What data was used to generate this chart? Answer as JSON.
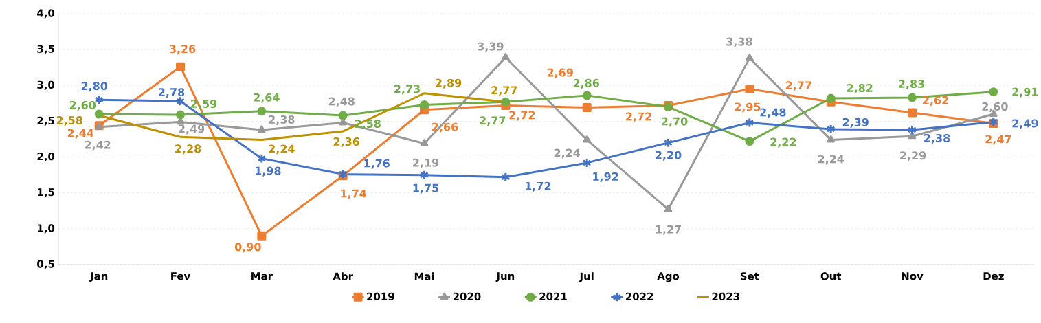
{
  "chart_data": {
    "type": "line",
    "categories": [
      "Jan",
      "Fev",
      "Mar",
      "Abr",
      "Mai",
      "Jun",
      "Jul",
      "Ago",
      "Set",
      "Out",
      "Nov",
      "Dez"
    ],
    "series": [
      {
        "name": "2019",
        "color": "#ed7d31",
        "marker": "square",
        "values": [
          2.44,
          3.26,
          0.9,
          1.74,
          2.66,
          2.72,
          2.69,
          2.72,
          2.95,
          2.77,
          2.62,
          2.47
        ],
        "value_labels": [
          "2,44",
          "3,26",
          "0,90",
          "1,74",
          "2,66",
          "2,72",
          "2,69",
          "2,72",
          "2,95",
          "2,77",
          "2,62",
          "2,47"
        ]
      },
      {
        "name": "2020",
        "color": "#999999",
        "marker": "triangle",
        "values": [
          2.42,
          2.49,
          2.38,
          2.48,
          2.19,
          3.39,
          2.24,
          1.27,
          3.38,
          2.24,
          2.29,
          2.6
        ],
        "value_labels": [
          "2,42",
          "2,49",
          "2,38",
          "2,48",
          "2,19",
          "3,39",
          "2,24",
          "1,27",
          "3,38",
          "2,24",
          "2,29",
          "2,60"
        ]
      },
      {
        "name": "2021",
        "color": "#70ad47",
        "marker": "circle",
        "values": [
          2.6,
          2.59,
          2.64,
          2.58,
          2.73,
          2.77,
          2.86,
          2.7,
          2.22,
          2.82,
          2.83,
          2.91
        ],
        "value_labels": [
          "2,60",
          "2,59",
          "2,64",
          "2,58",
          "2,73",
          "2,77",
          "2,86",
          "2,70",
          "2,22",
          "2,82",
          "2,83",
          "2,91"
        ]
      },
      {
        "name": "2022",
        "color": "#4472c4",
        "marker": "cross",
        "values": [
          2.8,
          2.78,
          1.98,
          1.76,
          1.75,
          1.72,
          1.92,
          2.2,
          2.48,
          2.39,
          2.38,
          2.49
        ],
        "value_labels": [
          "2,80",
          "2,78",
          "1,98",
          "1,76",
          "1,75",
          "1,72",
          "1,92",
          "2,20",
          "2,48",
          "2,39",
          "2,38",
          "2,49"
        ]
      },
      {
        "name": "2023",
        "color": "#bf9000",
        "marker": "none",
        "values": [
          2.58,
          2.28,
          2.24,
          2.36,
          2.89,
          2.77,
          null,
          null,
          null,
          null,
          null,
          null
        ],
        "value_labels": [
          "2,58",
          "2,28",
          "2,24",
          "2,36",
          "2,89",
          "2,77",
          null,
          null,
          null,
          null,
          null,
          null
        ]
      }
    ],
    "ylim": [
      0.5,
      4.0
    ],
    "yticks": [
      {
        "value": 0.5,
        "label": "0,5"
      },
      {
        "value": 1.0,
        "label": "1,0"
      },
      {
        "value": 1.5,
        "label": "1,5"
      },
      {
        "value": 2.0,
        "label": "2,0"
      },
      {
        "value": 2.5,
        "label": "2,5"
      },
      {
        "value": 3.0,
        "label": "3,0"
      },
      {
        "value": 3.5,
        "label": "3,5"
      },
      {
        "value": 4.0,
        "label": "4,0"
      }
    ],
    "grid": "y",
    "legend": "bottom",
    "line_style": "solid"
  }
}
